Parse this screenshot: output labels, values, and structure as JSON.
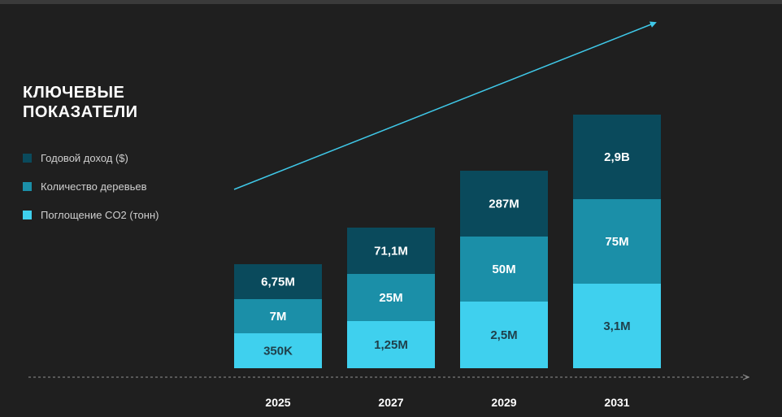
{
  "header": {
    "title_line1": "КЛЮЧЕВЫЕ",
    "title_line2": "ПОКАЗАТЕЛИ"
  },
  "legend": [
    {
      "label": "Годовой доход ($)",
      "color": "#0a4a5c"
    },
    {
      "label": "Количество деревьев",
      "color": "#1b8fa8"
    },
    {
      "label": "Поглощение CO2 (тонн)",
      "color": "#3fd0ee"
    }
  ],
  "chart_data": {
    "type": "bar",
    "stacked": true,
    "categories": [
      "2025",
      "2027",
      "2029",
      "2031"
    ],
    "series": [
      {
        "name": "Поглощение CO2 (тонн)",
        "color": "#3fd0ee",
        "labels": [
          "350K",
          "1,25M",
          "2,5M",
          "3,1M"
        ],
        "values": [
          350000,
          1250000,
          2500000,
          3100000
        ]
      },
      {
        "name": "Количество деревьев",
        "color": "#1b8fa8",
        "labels": [
          "7M",
          "25M",
          "50M",
          "75M"
        ],
        "values": [
          7000000,
          25000000,
          50000000,
          75000000
        ]
      },
      {
        "name": "Годовой доход ($)",
        "color": "#0a4a5c",
        "labels": [
          "6,75M",
          "71,1M",
          "287M",
          "2,9B"
        ],
        "values": [
          6750000,
          71100000,
          287000000,
          2900000000
        ]
      }
    ],
    "grid": false,
    "legend_position": "left",
    "trend_arrow": true
  }
}
